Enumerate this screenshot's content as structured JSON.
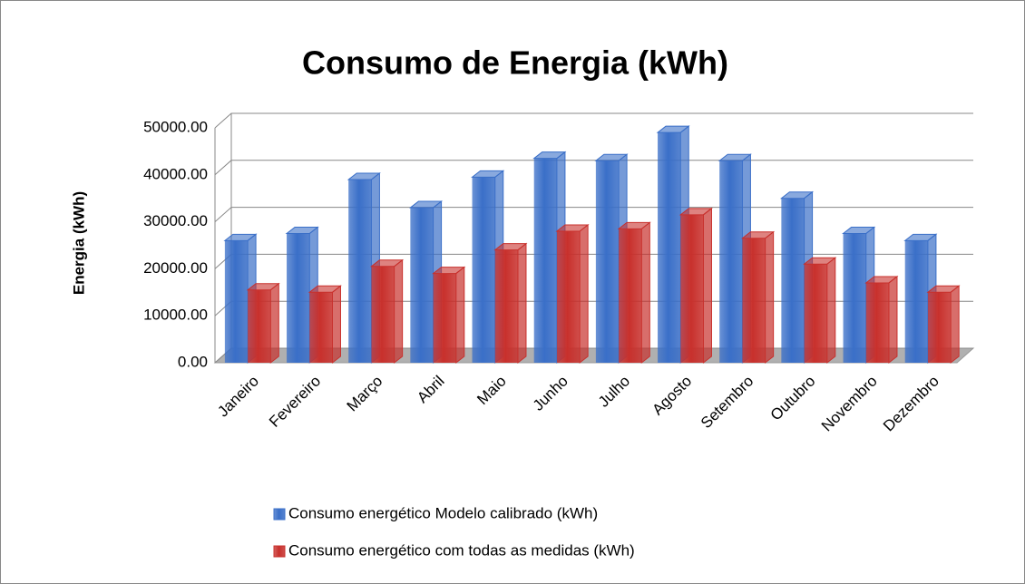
{
  "chart_data": {
    "type": "bar3d",
    "title": "Consumo de Energia (kWh)",
    "ylabel": "Energia (kWh)",
    "categories": [
      "Janeiro",
      "Fevereiro",
      "Março",
      "Abril",
      "Maio",
      "Junho",
      "Julho",
      "Agosto",
      "Setembro",
      "Outubro",
      "Novembro",
      "Dezembro"
    ],
    "series": [
      {
        "name": "Consumo energético Modelo calibrado (kWh)",
        "color": "#3a6fc8",
        "values": [
          26000,
          27500,
          39000,
          33000,
          39500,
          43500,
          43000,
          49000,
          43000,
          35000,
          27500,
          26000
        ]
      },
      {
        "name": "Consumo energético com todas as medidas (kWh)",
        "color": "#c8302c",
        "values": [
          15500,
          15000,
          20500,
          19000,
          24000,
          28000,
          28500,
          31500,
          26500,
          21000,
          17000,
          15000
        ]
      }
    ],
    "ylim": [
      0,
      50000
    ],
    "yticks": [
      {
        "value": 0,
        "label": "0.00"
      },
      {
        "value": 10000,
        "label": "10000.00"
      },
      {
        "value": 20000,
        "label": "20000.00"
      },
      {
        "value": 30000,
        "label": "30000.00"
      },
      {
        "value": 40000,
        "label": "40000.00"
      },
      {
        "value": 50000,
        "label": "50000.00"
      }
    ],
    "grid": true
  }
}
